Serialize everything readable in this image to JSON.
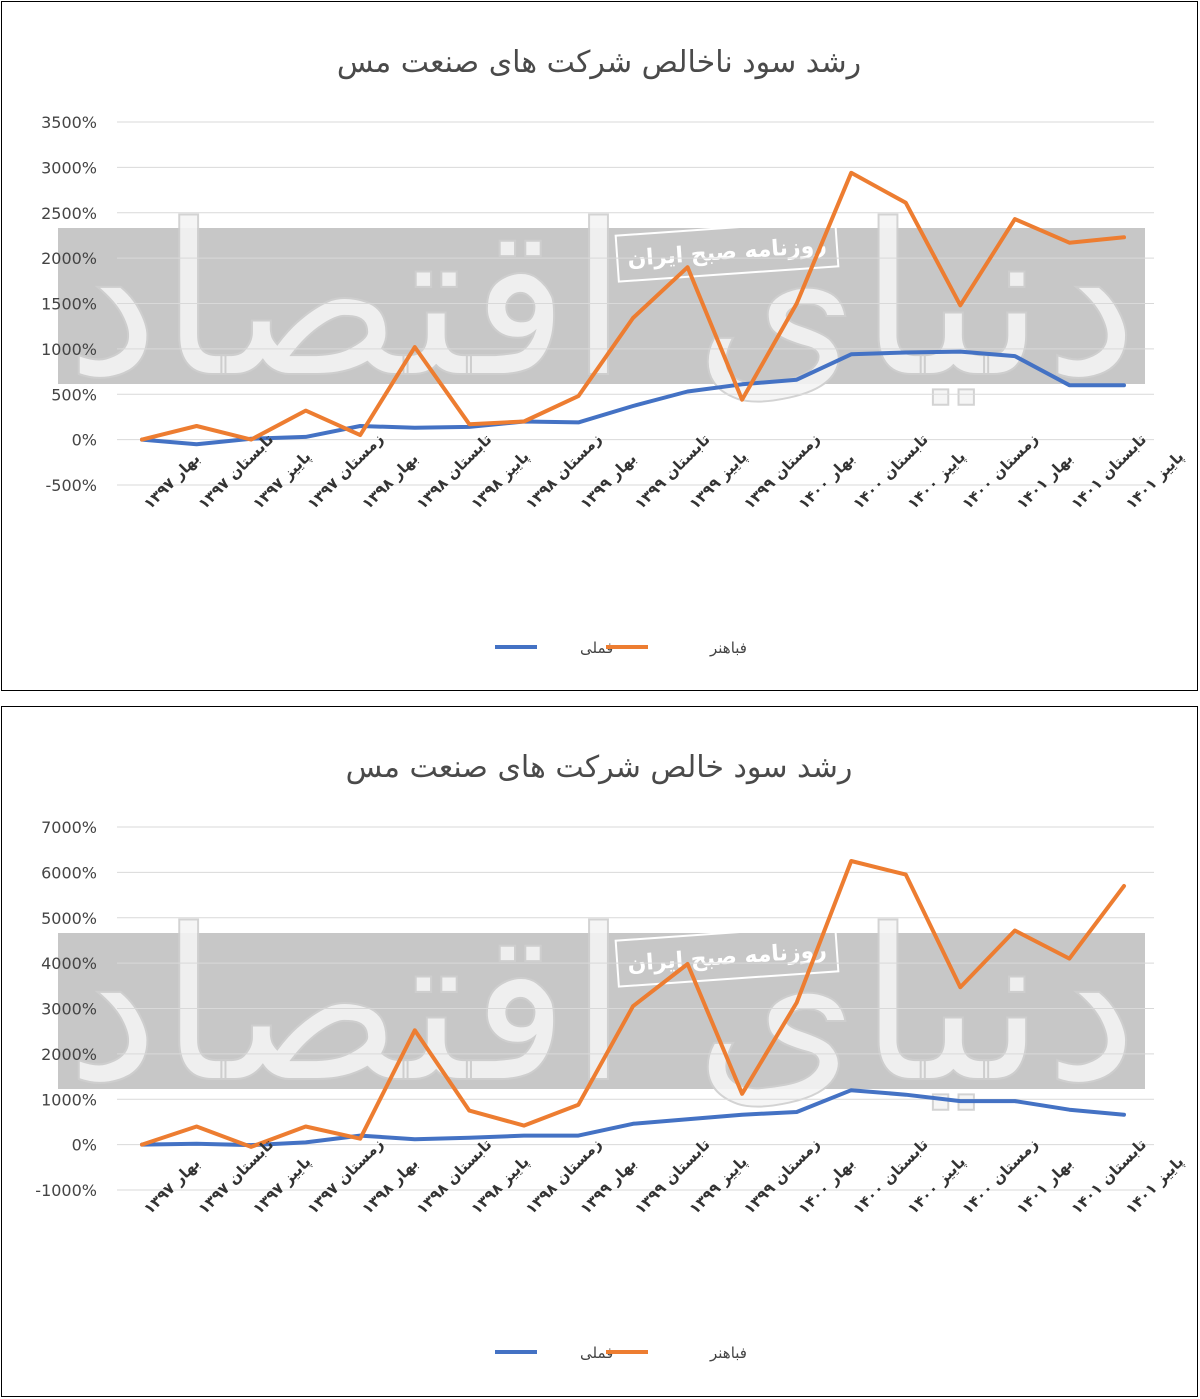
{
  "watermark": {
    "brand": "دنیای اقتصاد",
    "newspaper": "روزنامه صبح ایران"
  },
  "colors": {
    "series_1": "#4472c4",
    "series_2": "#ed7d31",
    "watermark_band": "#bdbdbd"
  },
  "chart_data": [
    {
      "type": "line",
      "title": "رشد سود ناخالص شرکت های صنعت مس",
      "categories": [
        "بهار ۱۳۹۷",
        "تابستان ۱۳۹۷",
        "پاییز ۱۳۹۷",
        "زمستان ۱۳۹۷",
        "بهار ۱۳۹۸",
        "تابستان ۱۳۹۸",
        "پاییز ۱۳۹۸",
        "زمستان ۱۳۹۸",
        "بهار ۱۳۹۹",
        "تابستان ۱۳۹۹",
        "پاییز ۱۳۹۹",
        "زمستان ۱۳۹۹",
        "بهار ۱۴۰۰",
        "تابستان ۱۴۰۰",
        "پاییز ۱۴۰۰",
        "زمستان ۱۴۰۰",
        "بهار ۱۴۰۱",
        "تابستان ۱۴۰۱",
        "پاییز ۱۴۰۱"
      ],
      "series": [
        {
          "name": "فملی",
          "values": [
            0,
            -50,
            10,
            30,
            150,
            130,
            140,
            200,
            190,
            370,
            530,
            610,
            660,
            940,
            960,
            970,
            920,
            600,
            600
          ]
        },
        {
          "name": "فباهنر",
          "values": [
            0,
            150,
            0,
            320,
            50,
            1020,
            170,
            200,
            480,
            1340,
            1900,
            440,
            1500,
            2940,
            2610,
            1480,
            2430,
            2170,
            2230
          ]
        }
      ],
      "ylim": [
        -500,
        3500
      ],
      "yticks": [
        -500,
        0,
        500,
        1000,
        1500,
        2000,
        2500,
        3000,
        3500
      ],
      "ytick_labels": [
        "-500%",
        "0%",
        "500%",
        "1000%",
        "1500%",
        "2000%",
        "2500%",
        "3000%",
        "3500%"
      ],
      "grid": true,
      "legend": "bottom"
    },
    {
      "type": "line",
      "title": "رشد سود خالص شرکت های صنعت مس",
      "categories": [
        "بهار ۱۳۹۷",
        "تابستان ۱۳۹۷",
        "پاییز ۱۳۹۷",
        "زمستان ۱۳۹۷",
        "بهار ۱۳۹۸",
        "تابستان ۱۳۹۸",
        "پاییز ۱۳۹۸",
        "زمستان ۱۳۹۸",
        "بهار ۱۳۹۹",
        "تابستان ۱۳۹۹",
        "پاییز ۱۳۹۹",
        "زمستان ۱۳۹۹",
        "بهار ۱۴۰۰",
        "تابستان ۱۴۰۰",
        "پاییز ۱۴۰۰",
        "زمستان ۱۴۰۰",
        "بهار ۱۴۰۱",
        "تابستان ۱۴۰۱",
        "پاییز ۱۴۰۱"
      ],
      "series": [
        {
          "name": "فملی",
          "values": [
            0,
            20,
            -10,
            50,
            200,
            120,
            150,
            200,
            200,
            460,
            560,
            660,
            720,
            1200,
            1100,
            960,
            960,
            770,
            660
          ]
        },
        {
          "name": "فباهنر",
          "values": [
            0,
            400,
            -50,
            400,
            130,
            2520,
            750,
            420,
            880,
            3050,
            3980,
            1120,
            3130,
            6250,
            5950,
            3470,
            4720,
            4100,
            5700
          ]
        }
      ],
      "ylim": [
        -1000,
        7000
      ],
      "yticks": [
        -1000,
        0,
        1000,
        2000,
        3000,
        4000,
        5000,
        6000,
        7000
      ],
      "ytick_labels": [
        "-1000%",
        "0%",
        "1000%",
        "2000%",
        "3000%",
        "4000%",
        "5000%",
        "6000%",
        "7000%"
      ],
      "grid": true,
      "legend": "bottom"
    }
  ]
}
